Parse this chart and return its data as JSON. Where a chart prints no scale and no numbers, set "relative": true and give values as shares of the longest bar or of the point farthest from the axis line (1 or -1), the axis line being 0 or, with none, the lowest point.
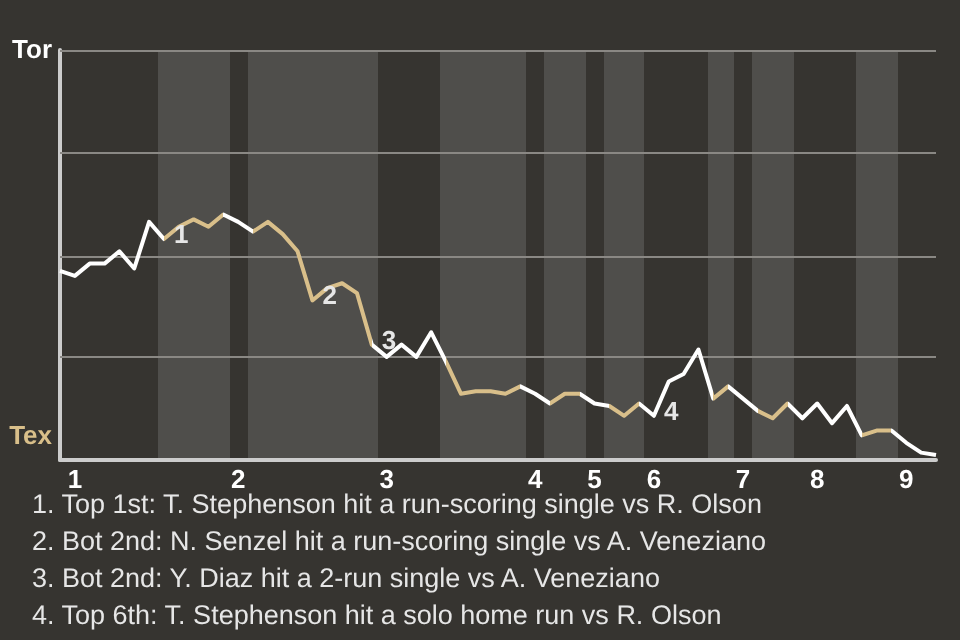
{
  "chart_data": {
    "type": "line",
    "relative": true,
    "categories": [
      null,
      "1",
      null,
      null,
      null,
      null,
      null,
      null,
      null,
      null,
      null,
      null,
      "2",
      null,
      null,
      null,
      null,
      null,
      null,
      null,
      null,
      null,
      "3",
      null,
      null,
      null,
      null,
      null,
      null,
      null,
      null,
      null,
      "4",
      null,
      null,
      null,
      "5",
      null,
      null,
      null,
      "6",
      null,
      null,
      null,
      null,
      null,
      "7",
      null,
      null,
      null,
      null,
      "8",
      null,
      null,
      null,
      null,
      null,
      "9",
      null,
      null
    ],
    "series": [
      {
        "color": "#ffffff",
        "values": [
          0.77,
          0.75,
          0.8,
          0.8,
          0.85,
          0.78,
          0.97,
          0.9,
          0.95,
          0.98,
          0.95,
          1,
          0.97,
          0.93,
          0.97,
          0.92,
          0.85,
          0.65,
          0.7,
          0.72,
          0.68,
          0.47,
          0.42,
          0.47,
          0.42,
          0.52,
          0.4,
          0.27,
          0.28,
          0.28,
          0.27,
          0.3,
          0.27,
          0.23,
          0.27,
          0.27,
          0.23,
          0.22,
          0.18,
          0.23,
          0.18,
          0.32,
          0.35,
          0.45,
          0.25,
          0.3,
          0.25,
          0.2,
          0.17,
          0.23,
          0.17,
          0.23,
          0.15,
          0.22,
          0.1,
          0.12,
          0.12,
          0.07,
          0.03,
          0.02
        ]
      }
    ],
    "ref_lines": [
      {
        "axis": "y",
        "value": 0.42,
        "color": "#8a8884"
      },
      {
        "axis": "y",
        "value": 0.83,
        "color": "#8a8884"
      },
      {
        "axis": "y",
        "value": 1.25,
        "color": "#8a8884"
      },
      {
        "axis": "y",
        "value": 1.67,
        "color": "#8a8884"
      }
    ],
    "annotations": [
      "Tor",
      "Tex",
      "1",
      "2",
      "3",
      "4",
      "1. Top 1st: T. Stephenson hit a run-scoring single vs R. Olson",
      "2. Bot 2nd: N. Senzel hit a run-scoring single vs A. Veneziano",
      "3. Bot 2nd: Y. Diaz hit a 2-run single vs A. Veneziano",
      "4. Top 6th: T. Stephenson hit a solo home run vs R. Olson"
    ]
  }
}
